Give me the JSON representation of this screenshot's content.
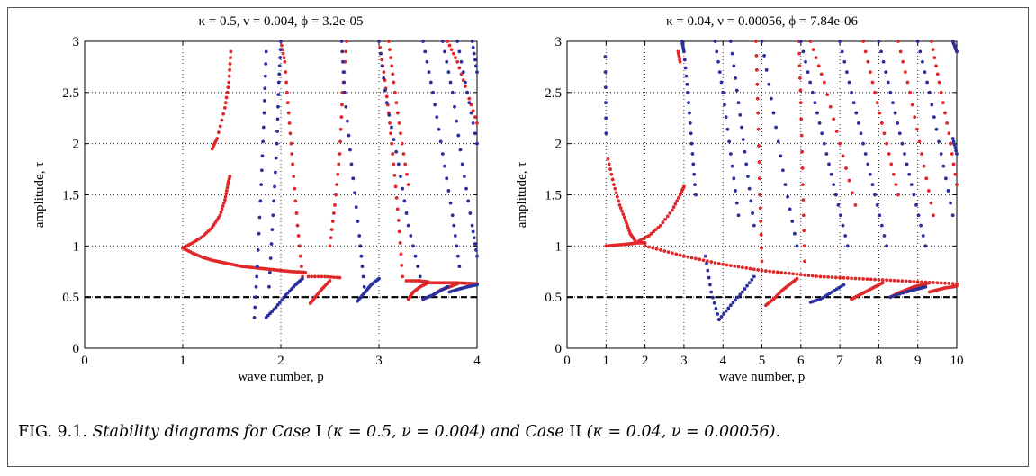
{
  "caption": {
    "fig_label": "FIG. 9.1.",
    "text_1": "Stability diagrams for",
    "case_word_1": "Case",
    "case_num_1": "I",
    "params_1": "(κ = 0.5, ν = 0.004)",
    "and_word": "and",
    "case_word_2": "Case",
    "case_num_2": "II",
    "params_2": "(κ = 0.04, ν = 0.00056)."
  },
  "colors": {
    "red": "#e0282a",
    "blue": "#2a2f9e",
    "grid": "#000000",
    "dashed_line": "#000000"
  },
  "chart_data": [
    {
      "type": "scatter",
      "title": "κ = 0.5,   ν = 0.004,   ϕ = 3.2e-05",
      "xlabel": "wave number, p",
      "ylabel": "amplitude, τ",
      "xlim": [
        0,
        4
      ],
      "ylim": [
        0,
        3
      ],
      "xticks": [
        "0",
        "1",
        "2",
        "3",
        "4"
      ],
      "yticks": [
        "0",
        "0.5",
        "1",
        "1.5",
        "2",
        "2.5",
        "3"
      ],
      "grid": true,
      "reference_line": {
        "y": 0.5,
        "style": "dashed"
      },
      "series": [
        {
          "color": "red",
          "curves": [
            {
              "x": [
                1.0,
                1.1,
                1.2,
                1.3,
                1.4,
                1.5,
                1.6,
                1.7,
                1.8,
                1.9,
                2.0,
                2.1,
                2.2,
                2.25
              ],
              "y": [
                0.98,
                0.93,
                0.89,
                0.86,
                0.84,
                0.82,
                0.8,
                0.79,
                0.78,
                0.77,
                0.76,
                0.75,
                0.745,
                0.74
              ]
            },
            {
              "x": [
                1.0,
                1.1,
                1.2,
                1.3,
                1.38,
                1.43,
                1.46,
                1.48
              ],
              "y": [
                0.98,
                1.03,
                1.09,
                1.18,
                1.3,
                1.45,
                1.6,
                1.68
              ]
            },
            {
              "x": [
                1.3,
                1.35,
                1.43,
                1.47,
                1.49
              ],
              "y": [
                1.95,
                2.05,
                2.35,
                2.6,
                2.9
              ]
            },
            {
              "x": [
                2.22,
                2.17,
                2.12,
                2.08,
                2.04,
                2.0
              ],
              "y": [
                0.7,
                1.2,
                1.8,
                2.3,
                2.8,
                3.0
              ]
            },
            {
              "x": [
                2.28,
                2.45,
                2.6
              ],
              "y": [
                0.7,
                0.7,
                0.69
              ]
            },
            {
              "x": [
                2.3,
                2.35,
                2.42,
                2.5
              ],
              "y": [
                0.44,
                0.5,
                0.58,
                0.66
              ]
            },
            {
              "x": [
                2.5,
                2.55,
                2.6,
                2.63,
                2.67
              ],
              "y": [
                1.0,
                1.4,
                1.9,
                2.5,
                3.0
              ]
            },
            {
              "x": [
                3.24,
                3.2,
                3.15,
                3.1,
                3.05,
                3.0
              ],
              "y": [
                0.7,
                1.25,
                1.8,
                2.3,
                2.7,
                3.0
              ]
            },
            {
              "x": [
                3.28,
                3.4,
                3.5
              ],
              "y": [
                0.66,
                0.66,
                0.65
              ]
            },
            {
              "x": [
                3.3,
                3.35,
                3.42,
                3.5
              ],
              "y": [
                0.48,
                0.55,
                0.6,
                0.64
              ]
            },
            {
              "x": [
                3.1,
                3.15,
                3.22,
                3.3
              ],
              "y": [
                3.0,
                2.6,
                2.1,
                1.6
              ]
            },
            {
              "x": [
                3.52,
                3.6,
                3.7,
                3.8,
                3.9,
                4.0
              ],
              "y": [
                0.64,
                0.64,
                0.64,
                0.64,
                0.635,
                0.63
              ]
            },
            {
              "x": [
                3.55,
                3.63,
                3.72,
                3.8
              ],
              "y": [
                0.52,
                0.57,
                0.6,
                0.63
              ]
            },
            {
              "x": [
                3.7,
                3.8,
                3.9,
                4.0
              ],
              "y": [
                3.0,
                2.8,
                2.5,
                2.2
              ]
            }
          ]
        },
        {
          "color": "blue",
          "curves": [
            {
              "x": [
                1.73,
                1.76,
                1.8,
                1.83,
                1.85
              ],
              "y": [
                0.3,
                0.8,
                1.6,
                2.3,
                2.9
              ]
            },
            {
              "x": [
                1.85,
                1.95,
                2.05,
                2.15,
                2.22
              ],
              "y": [
                0.3,
                0.4,
                0.52,
                0.62,
                0.68
              ]
            },
            {
              "x": [
                1.88,
                1.92,
                1.96,
                1.98,
                2.0
              ],
              "y": [
                0.6,
                1.3,
                2.0,
                2.6,
                3.0
              ]
            },
            {
              "x": [
                2.62,
                2.65,
                2.72,
                2.8,
                2.85
              ],
              "y": [
                3.0,
                2.5,
                1.8,
                1.1,
                0.6
              ]
            },
            {
              "x": [
                2.78,
                2.86,
                2.92,
                3.0
              ],
              "y": [
                0.46,
                0.55,
                0.62,
                0.68
              ]
            },
            {
              "x": [
                3.0,
                3.08,
                3.2,
                3.3,
                3.42
              ],
              "y": [
                3.0,
                2.4,
                1.8,
                1.2,
                0.7
              ]
            },
            {
              "x": [
                3.45,
                3.55,
                3.62,
                3.7
              ],
              "y": [
                0.48,
                0.52,
                0.56,
                0.6
              ]
            },
            {
              "x": [
                3.45,
                3.55,
                3.65,
                3.75,
                3.82
              ],
              "y": [
                3.0,
                2.5,
                1.9,
                1.3,
                0.8
              ]
            },
            {
              "x": [
                3.65,
                3.75,
                3.85,
                3.95,
                4.0
              ],
              "y": [
                3.0,
                2.5,
                1.8,
                1.2,
                0.9
              ]
            },
            {
              "x": [
                3.8,
                3.9,
                4.0
              ],
              "y": [
                3.0,
                2.5,
                2.0
              ]
            },
            {
              "x": [
                3.95,
                4.0
              ],
              "y": [
                3.0,
                2.7
              ]
            },
            {
              "x": [
                3.72,
                3.82,
                3.9,
                4.0
              ],
              "y": [
                0.55,
                0.58,
                0.6,
                0.62
              ]
            }
          ]
        }
      ]
    },
    {
      "type": "scatter",
      "title": "κ = 0.04,   ν = 0.00056,   ϕ = 7.84e-06",
      "xlabel": "wave number, p",
      "ylabel": "amplitude, τ",
      "xlim": [
        0,
        10
      ],
      "ylim": [
        0,
        3
      ],
      "xticks": [
        "0",
        "1",
        "2",
        "3",
        "4",
        "5",
        "6",
        "7",
        "8",
        "9",
        "10"
      ],
      "yticks": [
        "0",
        "0.5",
        "1",
        "1.5",
        "2",
        "2.5",
        "3"
      ],
      "grid": true,
      "reference_line": {
        "y": 0.5,
        "style": "dashed"
      },
      "series": [
        {
          "color": "red",
          "curves": [
            {
              "x": [
                1.0,
                1.3,
                1.6,
                1.8,
                2.0
              ],
              "y": [
                1.0,
                1.01,
                1.02,
                1.03,
                1.03
              ]
            },
            {
              "x": [
                1.05,
                1.2,
                1.35,
                1.5,
                1.62,
                1.75
              ],
              "y": [
                1.85,
                1.6,
                1.4,
                1.25,
                1.12,
                1.05
              ]
            },
            {
              "x": [
                1.85,
                2.1,
                2.4,
                2.7,
                2.9,
                3.0
              ],
              "y": [
                1.05,
                1.1,
                1.2,
                1.35,
                1.5,
                1.58
              ]
            },
            {
              "x": [
                2.0,
                2.5,
                3.0,
                3.5,
                4.0,
                4.5,
                5.0,
                5.5,
                6.0,
                6.5,
                7.0,
                7.5,
                8.0,
                8.5,
                9.0,
                9.5,
                10.0
              ],
              "y": [
                1.0,
                0.95,
                0.9,
                0.86,
                0.82,
                0.79,
                0.76,
                0.74,
                0.72,
                0.7,
                0.69,
                0.68,
                0.67,
                0.66,
                0.65,
                0.64,
                0.63
              ]
            },
            {
              "x": [
                2.85,
                2.9
              ],
              "y": [
                2.9,
                2.8
              ]
            },
            {
              "x": [
                5.1,
                5.3,
                5.5,
                5.7,
                5.9
              ],
              "y": [
                0.42,
                0.48,
                0.56,
                0.62,
                0.68
              ]
            },
            {
              "x": [
                7.3,
                7.5,
                7.7,
                7.9,
                8.1
              ],
              "y": [
                0.48,
                0.52,
                0.56,
                0.6,
                0.64
              ]
            },
            {
              "x": [
                8.3,
                8.5,
                8.7,
                8.9,
                9.1,
                9.3
              ],
              "y": [
                0.5,
                0.54,
                0.57,
                0.6,
                0.62,
                0.64
              ]
            },
            {
              "x": [
                9.3,
                9.5,
                9.7,
                9.9,
                10.0
              ],
              "y": [
                0.55,
                0.57,
                0.59,
                0.6,
                0.61
              ]
            },
            {
              "x": [
                4.85,
                4.9,
                4.95,
                5.0
              ],
              "y": [
                3.0,
                2.3,
                1.5,
                0.85
              ]
            },
            {
              "x": [
                5.95,
                6.0,
                6.05,
                6.1
              ],
              "y": [
                3.0,
                2.4,
                1.6,
                0.85
              ]
            },
            {
              "x": [
                6.25,
                6.6,
                7.0,
                7.4
              ],
              "y": [
                3.0,
                2.6,
                2.0,
                1.4
              ]
            },
            {
              "x": [
                7.6,
                7.9,
                8.2,
                8.5
              ],
              "y": [
                3.0,
                2.5,
                2.0,
                1.5
              ]
            },
            {
              "x": [
                8.5,
                8.8,
                9.1,
                9.4
              ],
              "y": [
                3.0,
                2.5,
                1.9,
                1.3
              ]
            },
            {
              "x": [
                9.35,
                9.55,
                9.8,
                10.0
              ],
              "y": [
                3.0,
                2.6,
                2.1,
                1.6
              ]
            },
            {
              "x": [
                9.9,
                10.0
              ],
              "y": [
                3.0,
                2.9
              ]
            }
          ]
        },
        {
          "color": "blue",
          "curves": [
            {
              "x": [
                0.98,
                1.0
              ],
              "y": [
                2.85,
                2.1
              ]
            },
            {
              "x": [
                2.95,
                3.0,
                3.1,
                3.2,
                3.3
              ],
              "y": [
                3.0,
                2.9,
                2.5,
                2.0,
                1.5
              ]
            },
            {
              "x": [
                3.55,
                3.7,
                3.9
              ],
              "y": [
                0.9,
                0.55,
                0.28
              ]
            },
            {
              "x": [
                3.9,
                4.2,
                4.5,
                4.8
              ],
              "y": [
                0.28,
                0.42,
                0.55,
                0.7
              ]
            },
            {
              "x": [
                3.8,
                4.0,
                4.2,
                4.4
              ],
              "y": [
                3.0,
                2.5,
                1.9,
                1.3
              ]
            },
            {
              "x": [
                4.2,
                4.4,
                4.6,
                4.8
              ],
              "y": [
                3.0,
                2.4,
                1.8,
                1.2
              ]
            },
            {
              "x": [
                5.0,
                5.3,
                5.6,
                5.9
              ],
              "y": [
                3.0,
                2.3,
                1.6,
                1.0
              ]
            },
            {
              "x": [
                6.25,
                6.5,
                6.8,
                7.1
              ],
              "y": [
                0.45,
                0.48,
                0.55,
                0.62
              ]
            },
            {
              "x": [
                6.0,
                6.3,
                6.6,
                6.9,
                7.2
              ],
              "y": [
                3.0,
                2.5,
                2.0,
                1.5,
                1.0
              ]
            },
            {
              "x": [
                7.0,
                7.3,
                7.6,
                7.9,
                8.2
              ],
              "y": [
                3.0,
                2.5,
                2.0,
                1.5,
                1.0
              ]
            },
            {
              "x": [
                8.0,
                8.3,
                8.6,
                8.9,
                9.2
              ],
              "y": [
                3.0,
                2.5,
                2.0,
                1.5,
                1.0
              ]
            },
            {
              "x": [
                8.3,
                8.7,
                9.0,
                9.2
              ],
              "y": [
                0.5,
                0.55,
                0.58,
                0.6
              ]
            },
            {
              "x": [
                9.0,
                9.3,
                9.6,
                9.9
              ],
              "y": [
                3.0,
                2.5,
                1.9,
                1.3
              ]
            },
            {
              "x": [
                9.9,
                10.0
              ],
              "y": [
                3.0,
                2.9
              ]
            },
            {
              "x": [
                9.9,
                10.0
              ],
              "y": [
                2.05,
                1.9
              ]
            }
          ]
        }
      ]
    }
  ]
}
